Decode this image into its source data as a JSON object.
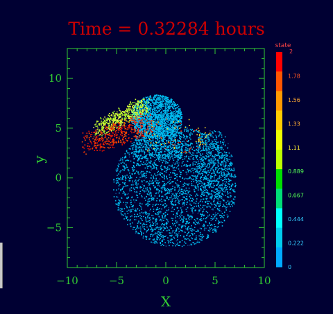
{
  "chart_data": {
    "type": "scatter",
    "title": "Time = 0.32284 hours",
    "xlabel": "X",
    "ylabel": "y",
    "xlim": [
      -10,
      10
    ],
    "ylim": [
      -9,
      13
    ],
    "x_ticks": [
      -10,
      -5,
      0,
      5,
      10
    ],
    "y_ticks": [
      -5,
      0,
      5,
      10
    ],
    "grid": false,
    "colorbar": {
      "label": "state",
      "top_label": "2",
      "range": [
        0,
        2
      ],
      "tick_labels": [
        "1.78",
        "1.56",
        "1.33",
        "1.11",
        "0.889",
        "0.667",
        "0.444",
        "0.222",
        "0"
      ],
      "colors": [
        "#ff0000",
        "#ff5500",
        "#ff9900",
        "#ffcc00",
        "#eeff00",
        "#bbff00",
        "#00dd00",
        "#00dd77",
        "#00ffff",
        "#00ccee",
        "#00aaff"
      ]
    },
    "series": [
      {
        "state_range": [
          0.2,
          0.45
        ],
        "color": "#00bbee",
        "region": "main body and upper lobe"
      },
      {
        "state_range": [
          1.1,
          1.4
        ],
        "color": "#ccff33",
        "region": "upper-left plume"
      },
      {
        "state_range": [
          1.8,
          2.0
        ],
        "color": "#ff2200",
        "region": "upper-left plume edge"
      }
    ]
  },
  "colors": {
    "background": "#000033",
    "axis": "#33cc33",
    "title": "#cc0000",
    "body_particles": "#00bbee"
  }
}
